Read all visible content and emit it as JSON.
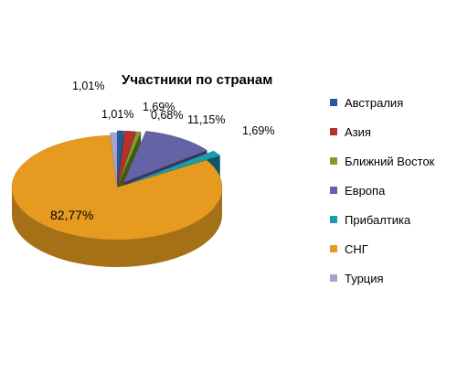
{
  "chart_data": {
    "type": "pie",
    "title": "Участники по странам",
    "legend_position": "right",
    "three_d": true,
    "categories": [
      "Австралия",
      "Азия",
      "Ближний Восток",
      "Европа",
      "Прибалтика",
      "СНГ",
      "Турция"
    ],
    "values": [
      1.01,
      1.69,
      0.68,
      11.15,
      1.69,
      82.77,
      1.01
    ],
    "data_labels": [
      "1,01%",
      "1,69%",
      "0,68%",
      "11,15%",
      "1,69%",
      "82,77%",
      "1,01%"
    ],
    "colors": [
      "#1F5C9B",
      "#B7312C",
      "#7E9F2A",
      "#6463A6",
      "#1B9DB0",
      "#E69B20",
      "#A7A3CF"
    ]
  }
}
